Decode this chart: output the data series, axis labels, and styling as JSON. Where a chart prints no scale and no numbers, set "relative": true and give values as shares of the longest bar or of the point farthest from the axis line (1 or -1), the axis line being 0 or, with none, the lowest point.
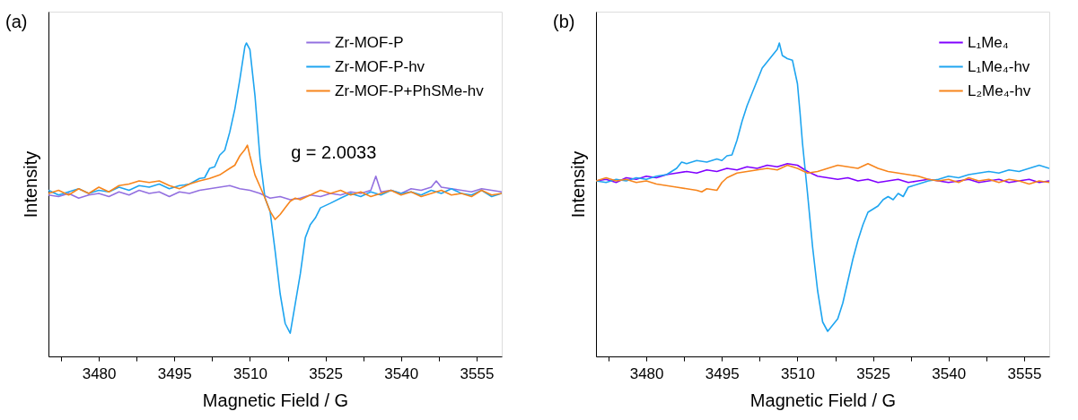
{
  "chart_data": [
    {
      "type": "line",
      "xlabel": "Magnetic Field / G",
      "ylabel": "Intensity",
      "relative": true,
      "legend": "top right",
      "grid": false,
      "annotations": [
        "(a)",
        "g = 2.0033"
      ],
      "xlim": [
        3470,
        3560
      ],
      "xticks": [
        {
          "value": 3472.5,
          "label": null
        },
        3480,
        {
          "value": 3487.5,
          "label": null
        },
        3495,
        {
          "value": 3502.5,
          "label": null
        },
        3510,
        {
          "value": 3517.5,
          "label": null
        },
        3525,
        {
          "value": 3532.5,
          "label": null
        },
        3540,
        {
          "value": 3547.5,
          "label": null
        },
        3555
      ],
      "series": [
        {
          "name": "Zr-MOF-P",
          "color": "#9370e0",
          "x": [
            3470,
            3472,
            3474,
            3476,
            3478,
            3480,
            3482,
            3484,
            3486,
            3488,
            3490,
            3492,
            3494,
            3496,
            3498,
            3500,
            3502,
            3504,
            3506,
            3508,
            3510,
            3512,
            3514,
            3516,
            3518,
            3520,
            3522,
            3524,
            3526,
            3528,
            3530,
            3532,
            3534,
            3535,
            3536,
            3538,
            3540,
            3542,
            3544,
            3546,
            3547,
            3548,
            3550,
            3552,
            3554,
            3556,
            3558,
            3560
          ],
          "values": [
            0.515,
            0.51,
            0.52,
            0.505,
            0.515,
            0.52,
            0.51,
            0.525,
            0.515,
            0.53,
            0.52,
            0.525,
            0.51,
            0.525,
            0.52,
            0.53,
            0.535,
            0.54,
            0.545,
            0.535,
            0.53,
            0.52,
            0.505,
            0.51,
            0.5,
            0.505,
            0.515,
            0.51,
            0.52,
            0.515,
            0.525,
            0.52,
            0.53,
            0.575,
            0.525,
            0.53,
            0.52,
            0.535,
            0.53,
            0.54,
            0.56,
            0.54,
            0.535,
            0.53,
            0.525,
            0.535,
            0.53,
            0.525
          ]
        },
        {
          "name": "Zr-MOF-P-hv",
          "color": "#1ea5f0",
          "x": [
            3470,
            3472,
            3474,
            3476,
            3478,
            3480,
            3482,
            3484,
            3486,
            3488,
            3490,
            3492,
            3494,
            3496,
            3497,
            3498,
            3500,
            3501,
            3502,
            3503,
            3504,
            3505,
            3506,
            3507,
            3508,
            3509,
            3509.3,
            3510,
            3511,
            3512,
            3513,
            3514,
            3515,
            3516,
            3517,
            3518,
            3519,
            3520,
            3521,
            3522,
            3523,
            3524,
            3526,
            3528,
            3530,
            3532,
            3534,
            3536,
            3538,
            3540,
            3542,
            3544,
            3546,
            3548,
            3550,
            3552,
            3554,
            3556,
            3558,
            3560
          ],
          "values": [
            0.53,
            0.515,
            0.525,
            0.535,
            0.52,
            0.53,
            0.525,
            0.54,
            0.53,
            0.545,
            0.54,
            0.55,
            0.535,
            0.545,
            0.547,
            0.55,
            0.568,
            0.57,
            0.6,
            0.605,
            0.642,
            0.658,
            0.716,
            0.789,
            0.884,
            0.989,
            1.0,
            0.979,
            0.832,
            0.632,
            0.505,
            0.463,
            0.337,
            0.2,
            0.105,
            0.074,
            0.168,
            0.263,
            0.379,
            0.421,
            0.442,
            0.474,
            0.489,
            0.505,
            0.52,
            0.51,
            0.525,
            0.515,
            0.53,
            0.52,
            0.525,
            0.515,
            0.53,
            0.52,
            0.535,
            0.52,
            0.515,
            0.53,
            0.51,
            0.52
          ]
        },
        {
          "name": "Zr-MOF-P+PhSMe-hv",
          "color": "#f7851c",
          "x": [
            3470,
            3472,
            3474,
            3476,
            3478,
            3480,
            3482,
            3484,
            3486,
            3488,
            3490,
            3492,
            3494,
            3496,
            3498,
            3500,
            3502,
            3504,
            3506,
            3507,
            3508,
            3509,
            3509.5,
            3510,
            3511,
            3512,
            3513,
            3514,
            3515,
            3516,
            3517,
            3518,
            3519,
            3520,
            3522,
            3524,
            3526,
            3528,
            3530,
            3532,
            3534,
            3536,
            3538,
            3540,
            3542,
            3544,
            3546,
            3548,
            3550,
            3552,
            3554,
            3556,
            3558,
            3560
          ],
          "values": [
            0.52,
            0.53,
            0.515,
            0.535,
            0.52,
            0.54,
            0.525,
            0.545,
            0.55,
            0.56,
            0.555,
            0.56,
            0.545,
            0.535,
            0.55,
            0.56,
            0.568,
            0.579,
            0.6,
            0.61,
            0.64,
            0.66,
            0.674,
            0.64,
            0.579,
            0.542,
            0.505,
            0.463,
            0.437,
            0.453,
            0.474,
            0.495,
            0.505,
            0.5,
            0.515,
            0.53,
            0.52,
            0.53,
            0.515,
            0.525,
            0.51,
            0.52,
            0.53,
            0.515,
            0.525,
            0.51,
            0.52,
            0.53,
            0.515,
            0.52,
            0.51,
            0.53,
            0.515,
            0.52
          ]
        }
      ]
    },
    {
      "type": "line",
      "xlabel": "Magnetic Field / G",
      "ylabel": "Intensity",
      "relative": true,
      "legend": "top right",
      "grid": false,
      "annotations": [
        "(b)"
      ],
      "xlim": [
        3470,
        3560
      ],
      "xticks": [
        {
          "value": 3472.5,
          "label": null
        },
        3480,
        {
          "value": 3487.5,
          "label": null
        },
        3495,
        {
          "value": 3502.5,
          "label": null
        },
        3510,
        {
          "value": 3517.5,
          "label": null
        },
        3525,
        {
          "value": 3532.5,
          "label": null
        },
        3540,
        {
          "value": 3547.5,
          "label": null
        },
        3555
      ],
      "series": [
        {
          "name": "L₁Me₄",
          "color": "#8000ff",
          "x": [
            3470,
            3472,
            3474,
            3476,
            3478,
            3480,
            3482,
            3484,
            3486,
            3488,
            3490,
            3492,
            3494,
            3496,
            3498,
            3500,
            3502,
            3504,
            3506,
            3508,
            3510,
            3512,
            3514,
            3516,
            3518,
            3520,
            3522,
            3524,
            3526,
            3528,
            3530,
            3532,
            3534,
            3536,
            3538,
            3540,
            3542,
            3544,
            3546,
            3548,
            3550,
            3552,
            3554,
            3556,
            3558,
            3560
          ],
          "values": [
            0.56,
            0.565,
            0.555,
            0.57,
            0.565,
            0.575,
            0.57,
            0.58,
            0.585,
            0.59,
            0.585,
            0.595,
            0.59,
            0.6,
            0.595,
            0.605,
            0.6,
            0.61,
            0.605,
            0.615,
            0.61,
            0.59,
            0.575,
            0.57,
            0.565,
            0.57,
            0.56,
            0.565,
            0.555,
            0.56,
            0.565,
            0.555,
            0.56,
            0.565,
            0.56,
            0.555,
            0.56,
            0.565,
            0.555,
            0.56,
            0.565,
            0.555,
            0.56,
            0.565,
            0.555,
            0.56
          ]
        },
        {
          "name": "L₁Me₄-hv",
          "color": "#1ea5f0",
          "x": [
            3470,
            3472,
            3474,
            3476,
            3478,
            3480,
            3482,
            3484,
            3486,
            3487,
            3488,
            3490,
            3492,
            3494,
            3495,
            3496,
            3497,
            3498,
            3499,
            3500,
            3501,
            3502,
            3503,
            3504,
            3505,
            3506,
            3506.4,
            3507,
            3508,
            3509,
            3510,
            3510.5,
            3511,
            3512,
            3513,
            3514,
            3515,
            3516,
            3517,
            3518,
            3519,
            3520,
            3521,
            3522,
            3523,
            3524,
            3525,
            3526,
            3527,
            3528,
            3529,
            3530,
            3531,
            3532,
            3534,
            3536,
            3538,
            3540,
            3542,
            3544,
            3546,
            3548,
            3550,
            3552,
            3554,
            3556,
            3558,
            3560
          ],
          "values": [
            0.56,
            0.555,
            0.565,
            0.56,
            0.57,
            0.565,
            0.575,
            0.58,
            0.6,
            0.62,
            0.615,
            0.625,
            0.62,
            0.63,
            0.625,
            0.64,
            0.643,
            0.69,
            0.75,
            0.8,
            0.84,
            0.88,
            0.92,
            0.94,
            0.96,
            0.98,
            1.0,
            0.96,
            0.95,
            0.945,
            0.87,
            0.78,
            0.68,
            0.52,
            0.35,
            0.21,
            0.11,
            0.08,
            0.1,
            0.12,
            0.17,
            0.24,
            0.31,
            0.37,
            0.42,
            0.46,
            0.47,
            0.48,
            0.5,
            0.51,
            0.5,
            0.52,
            0.51,
            0.54,
            0.55,
            0.56,
            0.565,
            0.575,
            0.57,
            0.58,
            0.585,
            0.59,
            0.585,
            0.595,
            0.59,
            0.6,
            0.61,
            0.6
          ]
        },
        {
          "name": "L₂Me₄-hv",
          "color": "#f7851c",
          "x": [
            3470,
            3472,
            3474,
            3476,
            3478,
            3480,
            3482,
            3484,
            3486,
            3488,
            3490,
            3491,
            3492,
            3494,
            3495,
            3496,
            3498,
            3500,
            3502,
            3504,
            3506,
            3508,
            3510,
            3512,
            3514,
            3516,
            3518,
            3520,
            3522,
            3524,
            3526,
            3528,
            3530,
            3532,
            3534,
            3536,
            3538,
            3540,
            3542,
            3544,
            3546,
            3548,
            3550,
            3552,
            3554,
            3556,
            3558,
            3560
          ],
          "values": [
            0.56,
            0.57,
            0.56,
            0.565,
            0.555,
            0.56,
            0.55,
            0.545,
            0.54,
            0.535,
            0.53,
            0.525,
            0.535,
            0.53,
            0.555,
            0.57,
            0.585,
            0.59,
            0.595,
            0.6,
            0.595,
            0.61,
            0.6,
            0.585,
            0.59,
            0.6,
            0.61,
            0.605,
            0.6,
            0.615,
            0.6,
            0.59,
            0.585,
            0.58,
            0.575,
            0.565,
            0.56,
            0.565,
            0.555,
            0.57,
            0.56,
            0.565,
            0.555,
            0.565,
            0.56,
            0.55,
            0.56,
            0.555
          ]
        }
      ]
    }
  ]
}
